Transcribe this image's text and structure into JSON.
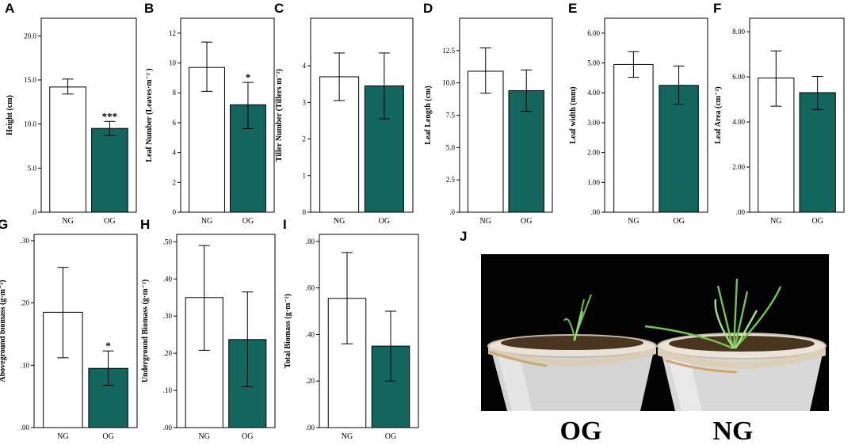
{
  "colors": {
    "ng": "#ffffff",
    "og": "#12665e",
    "frame": "#000000"
  },
  "chart_data": [
    {
      "letter": "A",
      "type": "bar",
      "ylabel": "Height (cm)",
      "categories": [
        "NG",
        "OG"
      ],
      "values": [
        14.2,
        9.5
      ],
      "err_low": [
        13.4,
        8.7
      ],
      "err_high": [
        15.1,
        10.3
      ],
      "ylim": [
        0,
        22
      ],
      "ticks": [
        0,
        5,
        10,
        15,
        20
      ],
      "tick_labels": [
        ".0",
        "5.0",
        "10.0",
        "15.0",
        "20.0"
      ],
      "sig": [
        "",
        "***"
      ]
    },
    {
      "letter": "B",
      "type": "bar",
      "ylabel": "Leaf Number (Leaves·m⁻² )",
      "categories": [
        "NG",
        "OG"
      ],
      "values": [
        9.7,
        7.2
      ],
      "err_low": [
        8.1,
        5.6
      ],
      "err_high": [
        11.4,
        8.7
      ],
      "ylim": [
        0,
        13
      ],
      "ticks": [
        0,
        2,
        4,
        6,
        8,
        10,
        12
      ],
      "tick_labels": [
        "0",
        "2",
        "4",
        "6",
        "8",
        "10",
        "12"
      ],
      "sig": [
        "",
        "*"
      ]
    },
    {
      "letter": "C",
      "type": "bar",
      "ylabel": "Tiller Number (Tillers m⁻²)",
      "categories": [
        "NG",
        "OG"
      ],
      "values": [
        3.7,
        3.45
      ],
      "err_low": [
        3.05,
        2.55
      ],
      "err_high": [
        4.35,
        4.35
      ],
      "ylim": [
        0,
        5.3
      ],
      "ticks": [
        0,
        1,
        2,
        3,
        4
      ],
      "tick_labels": [
        "0",
        "1",
        "2",
        "3",
        "4"
      ],
      "sig": [
        "",
        ""
      ]
    },
    {
      "letter": "D",
      "type": "bar",
      "ylabel": "Leaf Length (cm)",
      "categories": [
        "NG",
        "OG"
      ],
      "values": [
        10.9,
        9.4
      ],
      "err_low": [
        9.2,
        7.8
      ],
      "err_high": [
        12.7,
        11.0
      ],
      "ylim": [
        0,
        15
      ],
      "ticks": [
        0,
        2.5,
        5,
        7.5,
        10,
        12.5
      ],
      "tick_labels": [
        ".0",
        "2.5",
        "5.0",
        "7.5",
        "10.0",
        "12.5"
      ],
      "sig": [
        "",
        ""
      ]
    },
    {
      "letter": "E",
      "type": "bar",
      "ylabel": "Leaf width (mm)",
      "categories": [
        "NG",
        "OG"
      ],
      "values": [
        4.95,
        4.25
      ],
      "err_low": [
        4.52,
        3.62
      ],
      "err_high": [
        5.38,
        4.9
      ],
      "ylim": [
        0,
        6.5
      ],
      "ticks": [
        0,
        1,
        2,
        3,
        4,
        5,
        6
      ],
      "tick_labels": [
        ".00",
        "1.00",
        "2.00",
        "3.00",
        "4.00",
        "5.00",
        "6.00"
      ],
      "sig": [
        "",
        ""
      ]
    },
    {
      "letter": "F",
      "type": "bar",
      "ylabel": "Leaf Area (cm⁻²)",
      "categories": [
        "NG",
        "OG"
      ],
      "values": [
        5.95,
        5.3
      ],
      "err_low": [
        4.7,
        4.55
      ],
      "err_high": [
        7.15,
        6.02
      ],
      "ylim": [
        0,
        8.6
      ],
      "ticks": [
        0,
        2,
        4,
        6,
        8
      ],
      "tick_labels": [
        ".00",
        "2.00",
        "4.00",
        "6.00",
        "8.00"
      ],
      "sig": [
        "",
        ""
      ]
    },
    {
      "letter": "G",
      "type": "bar",
      "ylabel": "Aboveground biomass (g·m⁻²)",
      "categories": [
        "NG",
        "OG"
      ],
      "values": [
        0.185,
        0.095
      ],
      "err_low": [
        0.112,
        0.068
      ],
      "err_high": [
        0.257,
        0.123
      ],
      "ylim": [
        0,
        0.31
      ],
      "ticks": [
        0,
        0.1,
        0.2,
        0.3
      ],
      "tick_labels": [
        ".00",
        ".10",
        ".20",
        ".30"
      ],
      "sig": [
        "",
        "*"
      ]
    },
    {
      "letter": "H",
      "type": "bar",
      "ylabel": "Underground Biomass (g·m⁻²)",
      "categories": [
        "NG",
        "OG"
      ],
      "values": [
        0.35,
        0.237
      ],
      "err_low": [
        0.208,
        0.11
      ],
      "err_high": [
        0.49,
        0.365
      ],
      "ylim": [
        0,
        0.52
      ],
      "ticks": [
        0,
        0.1,
        0.2,
        0.3,
        0.4,
        0.5
      ],
      "tick_labels": [
        ".00",
        ".10",
        ".20",
        ".30",
        ".40",
        ".50"
      ],
      "sig": [
        "",
        ""
      ]
    },
    {
      "letter": "I",
      "type": "bar",
      "ylabel": "Total Biomass (g·m⁻²)",
      "categories": [
        "NG",
        "OG"
      ],
      "values": [
        0.555,
        0.35
      ],
      "err_low": [
        0.36,
        0.2
      ],
      "err_high": [
        0.752,
        0.5
      ],
      "ylim": [
        0,
        0.83
      ],
      "ticks": [
        0,
        0.2,
        0.4,
        0.6,
        0.8
      ],
      "tick_labels": [
        ".00",
        ".20",
        ".40",
        ".60",
        ".80"
      ],
      "sig": [
        "",
        ""
      ]
    }
  ],
  "photo": {
    "letter": "J",
    "left_label": "OG",
    "right_label": "NG"
  }
}
